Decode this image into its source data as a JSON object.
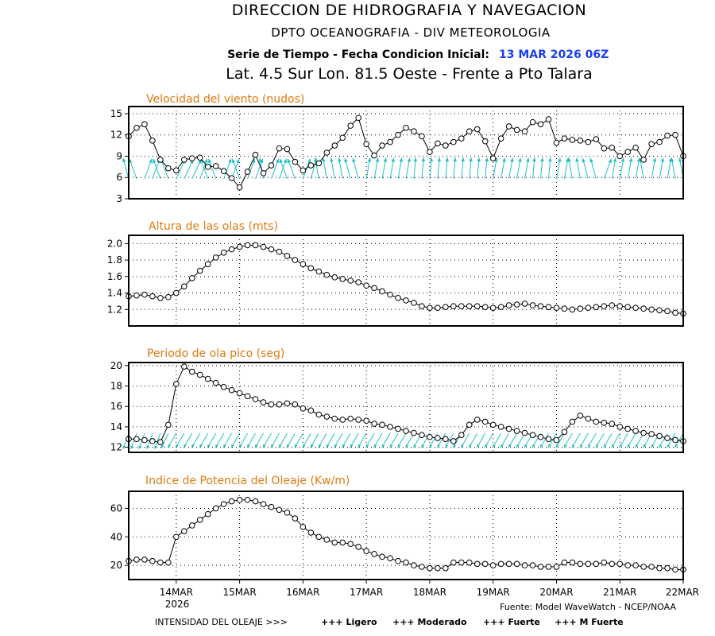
{
  "header": {
    "line1": "DIRECCION DE HIDROGRAFIA Y NAVEGACION",
    "line2": "DPTO OCEANOGRAFIA - DIV METEOROLOGIA",
    "line3_label": "Serie de Tiempo - Fecha Condicion Inicial:",
    "line3_date": "13 MAR 2026 06Z",
    "line4": "Lat. 4.5 Sur  Lon. 81.5 Oeste - Frente a Pto Talara"
  },
  "x_axis": {
    "tick_labels": [
      "14MAR",
      "15MAR",
      "16MAR",
      "17MAR",
      "18MAR",
      "19MAR",
      "20MAR",
      "21MAR",
      "22MAR"
    ],
    "year_label": "2026"
  },
  "footer": {
    "source": "Fuente: Model WaveWatch - NCEP/NOAA",
    "legend_prefix": "INTENSIDAD DEL OLEAJE >>>",
    "levels": [
      {
        "label": "+++ Ligero",
        "color": "#1e90ff"
      },
      {
        "label": "+++ Moderado",
        "color": "#10c060"
      },
      {
        "label": "+++ Fuerte",
        "color": "#e8d020"
      },
      {
        "label": "+++ M Fuerte",
        "color": "#ff2020"
      }
    ]
  },
  "chart_data": [
    {
      "type": "line",
      "title": "Velocidad del viento (nudos)",
      "x_start": "13MAR 06Z",
      "x_step_hours": 3,
      "ylim": [
        3,
        16
      ],
      "yticks": [
        3,
        6,
        9,
        12,
        15
      ],
      "values": [
        11.8,
        13.0,
        13.5,
        11.2,
        8.5,
        7.3,
        7.0,
        8.5,
        8.7,
        8.8,
        7.5,
        7.6,
        6.9,
        5.9,
        4.6,
        6.8,
        9.2,
        6.6,
        7.7,
        10.1,
        10.0,
        8.2,
        7.0,
        7.7,
        8.0,
        9.5,
        10.5,
        11.6,
        13.3,
        14.4,
        10.7,
        9.1,
        10.5,
        11.0,
        12.0,
        13.0,
        12.5,
        11.8,
        9.6,
        10.8,
        10.5,
        11.0,
        11.5,
        12.5,
        12.8,
        11.1,
        8.7,
        11.5,
        13.2,
        12.7,
        12.5,
        13.8,
        13.5,
        14.2,
        10.9,
        11.5,
        11.3,
        11.2,
        11.0,
        11.4,
        10.1,
        10.2,
        9.0,
        9.6,
        10.2,
        8.5,
        10.7,
        11.0,
        11.9,
        12.0,
        9.0
      ],
      "arrow_directions_deg": [
        345,
        340,
        20,
        20,
        340,
        340,
        25,
        25,
        25,
        20,
        340,
        340,
        20,
        20,
        340,
        20,
        20,
        350,
        20,
        20,
        340,
        340,
        20,
        15,
        350,
        350,
        350,
        350,
        345,
        345,
        10,
        10,
        10,
        10,
        10,
        10,
        5,
        5,
        5,
        5,
        5,
        5,
        5,
        5,
        5,
        5,
        10,
        10,
        10,
        10,
        10,
        5,
        5,
        5,
        10,
        10,
        350,
        350,
        345,
        345,
        20,
        10,
        10,
        10,
        10,
        350,
        10,
        10,
        10,
        350,
        350
      ],
      "arrow_color": "#20c0c8"
    },
    {
      "type": "line",
      "title": "Altura de las olas (mts)",
      "x_start": "13MAR 06Z",
      "x_step_hours": 3,
      "ylim": [
        1.0,
        2.1
      ],
      "yticks": [
        1.2,
        1.4,
        1.6,
        1.8,
        2.0
      ],
      "values": [
        1.36,
        1.37,
        1.38,
        1.36,
        1.34,
        1.35,
        1.4,
        1.48,
        1.58,
        1.67,
        1.75,
        1.83,
        1.89,
        1.93,
        1.96,
        1.98,
        1.98,
        1.96,
        1.93,
        1.9,
        1.85,
        1.8,
        1.75,
        1.7,
        1.66,
        1.62,
        1.59,
        1.57,
        1.55,
        1.53,
        1.49,
        1.46,
        1.42,
        1.38,
        1.34,
        1.31,
        1.28,
        1.24,
        1.22,
        1.22,
        1.23,
        1.24,
        1.24,
        1.24,
        1.24,
        1.23,
        1.22,
        1.23,
        1.25,
        1.26,
        1.27,
        1.25,
        1.24,
        1.23,
        1.22,
        1.21,
        1.2,
        1.21,
        1.22,
        1.23,
        1.24,
        1.25,
        1.24,
        1.23,
        1.22,
        1.21,
        1.2,
        1.19,
        1.18,
        1.16,
        1.15
      ]
    },
    {
      "type": "line",
      "title": "Periodo de ola pico (seg)",
      "x_start": "13MAR 06Z",
      "x_step_hours": 3,
      "ylim": [
        11.5,
        20.3
      ],
      "yticks": [
        12,
        14,
        16,
        18,
        20
      ],
      "values": [
        12.8,
        12.8,
        12.7,
        12.6,
        12.5,
        14.2,
        18.2,
        19.9,
        19.4,
        19.1,
        18.7,
        18.3,
        17.9,
        17.6,
        17.3,
        17.0,
        16.7,
        16.4,
        16.2,
        16.2,
        16.3,
        16.2,
        15.8,
        15.6,
        15.2,
        15.0,
        14.8,
        14.7,
        14.8,
        14.7,
        14.6,
        14.3,
        14.2,
        14.0,
        13.8,
        13.6,
        13.4,
        13.2,
        13.0,
        12.9,
        12.8,
        12.6,
        13.2,
        14.2,
        14.7,
        14.5,
        14.2,
        14.0,
        13.8,
        13.6,
        13.4,
        13.2,
        13.0,
        12.8,
        12.7,
        13.5,
        14.5,
        15.1,
        14.8,
        14.5,
        14.4,
        14.3,
        14.0,
        13.8,
        13.6,
        13.4,
        13.3,
        13.1,
        12.9,
        12.7,
        12.6
      ],
      "arrow_directions_deg": [
        200,
        200,
        200,
        200,
        200,
        205,
        210,
        210,
        210,
        210,
        210,
        210,
        210,
        210,
        210,
        210,
        210,
        210,
        210,
        210,
        210,
        210,
        210,
        210,
        210,
        210,
        210,
        210,
        210,
        210,
        210,
        210,
        210,
        210,
        210,
        210,
        210,
        210,
        210,
        210,
        210,
        210,
        210,
        210,
        210,
        210,
        210,
        210,
        210,
        210,
        210,
        210,
        210,
        210,
        210,
        210,
        210,
        210,
        210,
        210,
        210,
        210,
        210,
        210,
        210,
        210,
        210,
        210,
        210,
        210,
        210
      ],
      "arrow_color": "#20c0c8"
    },
    {
      "type": "line",
      "title": "Indice de Potencia del Oleaje (Kw/m)",
      "x_start": "13MAR 06Z",
      "x_step_hours": 3,
      "ylim": [
        10,
        72
      ],
      "yticks": [
        20,
        40,
        60
      ],
      "values": [
        23,
        24,
        24,
        23,
        22,
        22,
        40,
        44,
        48,
        52,
        56,
        60,
        63,
        65,
        66,
        66,
        65,
        63,
        61,
        59,
        57,
        53,
        47,
        43,
        40,
        38,
        36,
        36,
        35,
        33,
        30,
        28,
        26,
        25,
        23,
        22,
        20,
        19,
        18,
        18,
        18,
        22,
        22,
        22,
        21,
        21,
        20,
        21,
        21,
        21,
        20,
        20,
        19,
        19,
        19,
        22,
        22,
        21,
        21,
        21,
        22,
        21,
        21,
        20,
        20,
        19,
        19,
        18,
        18,
        17,
        17
      ]
    }
  ]
}
